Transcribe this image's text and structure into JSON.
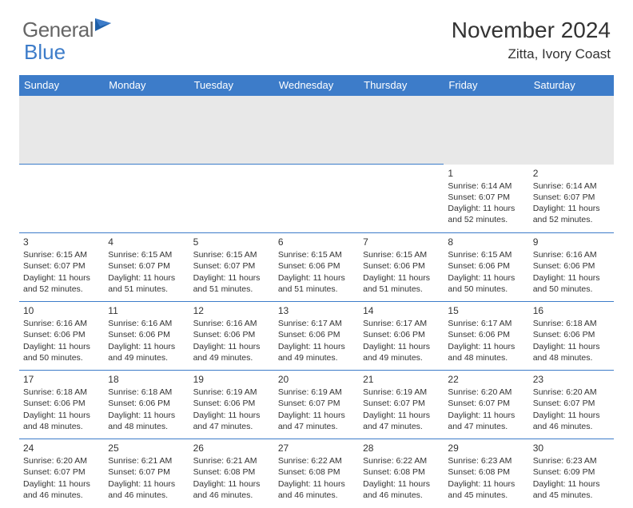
{
  "logo": {
    "text1": "General",
    "text2": "Blue"
  },
  "title": "November 2024",
  "location": "Zitta, Ivory Coast",
  "colors": {
    "header_bg": "#3d7cc9",
    "header_text": "#ffffff",
    "rule": "#3d7cc9",
    "spacer_bg": "#e8e8e8",
    "text": "#333333",
    "logo_gray": "#666666",
    "logo_blue": "#3d7cc9",
    "page_bg": "#ffffff"
  },
  "weekdays": [
    "Sunday",
    "Monday",
    "Tuesday",
    "Wednesday",
    "Thursday",
    "Friday",
    "Saturday"
  ],
  "weeks": [
    [
      null,
      null,
      null,
      null,
      null,
      {
        "n": "1",
        "sr": "Sunrise: 6:14 AM",
        "ss": "Sunset: 6:07 PM",
        "d1": "Daylight: 11 hours",
        "d2": "and 52 minutes."
      },
      {
        "n": "2",
        "sr": "Sunrise: 6:14 AM",
        "ss": "Sunset: 6:07 PM",
        "d1": "Daylight: 11 hours",
        "d2": "and 52 minutes."
      }
    ],
    [
      {
        "n": "3",
        "sr": "Sunrise: 6:15 AM",
        "ss": "Sunset: 6:07 PM",
        "d1": "Daylight: 11 hours",
        "d2": "and 52 minutes."
      },
      {
        "n": "4",
        "sr": "Sunrise: 6:15 AM",
        "ss": "Sunset: 6:07 PM",
        "d1": "Daylight: 11 hours",
        "d2": "and 51 minutes."
      },
      {
        "n": "5",
        "sr": "Sunrise: 6:15 AM",
        "ss": "Sunset: 6:07 PM",
        "d1": "Daylight: 11 hours",
        "d2": "and 51 minutes."
      },
      {
        "n": "6",
        "sr": "Sunrise: 6:15 AM",
        "ss": "Sunset: 6:06 PM",
        "d1": "Daylight: 11 hours",
        "d2": "and 51 minutes."
      },
      {
        "n": "7",
        "sr": "Sunrise: 6:15 AM",
        "ss": "Sunset: 6:06 PM",
        "d1": "Daylight: 11 hours",
        "d2": "and 51 minutes."
      },
      {
        "n": "8",
        "sr": "Sunrise: 6:15 AM",
        "ss": "Sunset: 6:06 PM",
        "d1": "Daylight: 11 hours",
        "d2": "and 50 minutes."
      },
      {
        "n": "9",
        "sr": "Sunrise: 6:16 AM",
        "ss": "Sunset: 6:06 PM",
        "d1": "Daylight: 11 hours",
        "d2": "and 50 minutes."
      }
    ],
    [
      {
        "n": "10",
        "sr": "Sunrise: 6:16 AM",
        "ss": "Sunset: 6:06 PM",
        "d1": "Daylight: 11 hours",
        "d2": "and 50 minutes."
      },
      {
        "n": "11",
        "sr": "Sunrise: 6:16 AM",
        "ss": "Sunset: 6:06 PM",
        "d1": "Daylight: 11 hours",
        "d2": "and 49 minutes."
      },
      {
        "n": "12",
        "sr": "Sunrise: 6:16 AM",
        "ss": "Sunset: 6:06 PM",
        "d1": "Daylight: 11 hours",
        "d2": "and 49 minutes."
      },
      {
        "n": "13",
        "sr": "Sunrise: 6:17 AM",
        "ss": "Sunset: 6:06 PM",
        "d1": "Daylight: 11 hours",
        "d2": "and 49 minutes."
      },
      {
        "n": "14",
        "sr": "Sunrise: 6:17 AM",
        "ss": "Sunset: 6:06 PM",
        "d1": "Daylight: 11 hours",
        "d2": "and 49 minutes."
      },
      {
        "n": "15",
        "sr": "Sunrise: 6:17 AM",
        "ss": "Sunset: 6:06 PM",
        "d1": "Daylight: 11 hours",
        "d2": "and 48 minutes."
      },
      {
        "n": "16",
        "sr": "Sunrise: 6:18 AM",
        "ss": "Sunset: 6:06 PM",
        "d1": "Daylight: 11 hours",
        "d2": "and 48 minutes."
      }
    ],
    [
      {
        "n": "17",
        "sr": "Sunrise: 6:18 AM",
        "ss": "Sunset: 6:06 PM",
        "d1": "Daylight: 11 hours",
        "d2": "and 48 minutes."
      },
      {
        "n": "18",
        "sr": "Sunrise: 6:18 AM",
        "ss": "Sunset: 6:06 PM",
        "d1": "Daylight: 11 hours",
        "d2": "and 48 minutes."
      },
      {
        "n": "19",
        "sr": "Sunrise: 6:19 AM",
        "ss": "Sunset: 6:06 PM",
        "d1": "Daylight: 11 hours",
        "d2": "and 47 minutes."
      },
      {
        "n": "20",
        "sr": "Sunrise: 6:19 AM",
        "ss": "Sunset: 6:07 PM",
        "d1": "Daylight: 11 hours",
        "d2": "and 47 minutes."
      },
      {
        "n": "21",
        "sr": "Sunrise: 6:19 AM",
        "ss": "Sunset: 6:07 PM",
        "d1": "Daylight: 11 hours",
        "d2": "and 47 minutes."
      },
      {
        "n": "22",
        "sr": "Sunrise: 6:20 AM",
        "ss": "Sunset: 6:07 PM",
        "d1": "Daylight: 11 hours",
        "d2": "and 47 minutes."
      },
      {
        "n": "23",
        "sr": "Sunrise: 6:20 AM",
        "ss": "Sunset: 6:07 PM",
        "d1": "Daylight: 11 hours",
        "d2": "and 46 minutes."
      }
    ],
    [
      {
        "n": "24",
        "sr": "Sunrise: 6:20 AM",
        "ss": "Sunset: 6:07 PM",
        "d1": "Daylight: 11 hours",
        "d2": "and 46 minutes."
      },
      {
        "n": "25",
        "sr": "Sunrise: 6:21 AM",
        "ss": "Sunset: 6:07 PM",
        "d1": "Daylight: 11 hours",
        "d2": "and 46 minutes."
      },
      {
        "n": "26",
        "sr": "Sunrise: 6:21 AM",
        "ss": "Sunset: 6:08 PM",
        "d1": "Daylight: 11 hours",
        "d2": "and 46 minutes."
      },
      {
        "n": "27",
        "sr": "Sunrise: 6:22 AM",
        "ss": "Sunset: 6:08 PM",
        "d1": "Daylight: 11 hours",
        "d2": "and 46 minutes."
      },
      {
        "n": "28",
        "sr": "Sunrise: 6:22 AM",
        "ss": "Sunset: 6:08 PM",
        "d1": "Daylight: 11 hours",
        "d2": "and 46 minutes."
      },
      {
        "n": "29",
        "sr": "Sunrise: 6:23 AM",
        "ss": "Sunset: 6:08 PM",
        "d1": "Daylight: 11 hours",
        "d2": "and 45 minutes."
      },
      {
        "n": "30",
        "sr": "Sunrise: 6:23 AM",
        "ss": "Sunset: 6:09 PM",
        "d1": "Daylight: 11 hours",
        "d2": "and 45 minutes."
      }
    ]
  ]
}
